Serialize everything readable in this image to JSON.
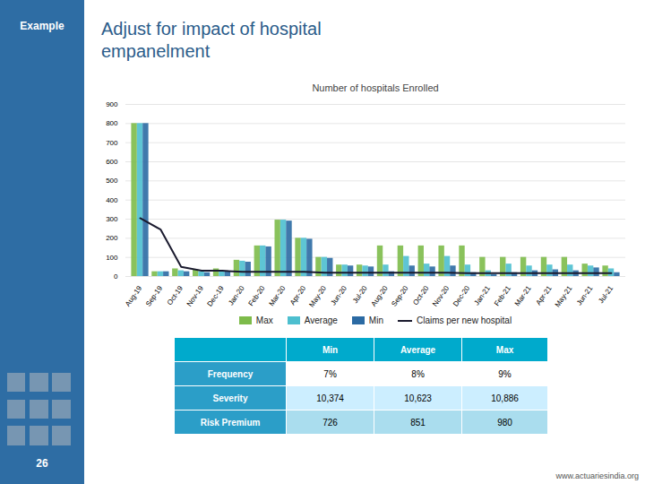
{
  "chart_data": {
    "type": "bar",
    "title": "Number of hospitals Enrolled",
    "categories": [
      "Aug-19",
      "Sep-19",
      "Oct-19",
      "Nov-19",
      "Dec-19",
      "Jan-20",
      "Feb-20",
      "Mar-20",
      "Apr-20",
      "May-20",
      "Jun-20",
      "Jul-20",
      "Aug-20",
      "Sep-20",
      "Oct-20",
      "Nov-20",
      "Dec-20",
      "Jan-21",
      "Feb-21",
      "Mar-21",
      "Apr-21",
      "May-21",
      "Jun-21",
      "Jul-21"
    ],
    "series": [
      {
        "name": "Max",
        "type": "bar",
        "color": "#7dbb4a",
        "values": [
          800,
          25,
          40,
          35,
          40,
          85,
          160,
          295,
          200,
          100,
          60,
          60,
          160,
          160,
          160,
          160,
          160,
          100,
          100,
          100,
          100,
          100,
          65,
          55
        ]
      },
      {
        "name": "Average",
        "type": "bar",
        "color": "#4dbfcf",
        "values": [
          800,
          25,
          30,
          25,
          30,
          80,
          160,
          295,
          200,
          100,
          60,
          55,
          60,
          105,
          65,
          105,
          60,
          30,
          65,
          55,
          60,
          60,
          55,
          40
        ]
      },
      {
        "name": "Min",
        "type": "bar",
        "color": "#2b6aa3",
        "values": [
          800,
          25,
          25,
          20,
          25,
          75,
          155,
          290,
          195,
          95,
          55,
          50,
          25,
          55,
          50,
          55,
          20,
          10,
          20,
          30,
          35,
          30,
          45,
          20
        ]
      },
      {
        "name": "Claims per new hospital",
        "type": "line",
        "color": "#1a1a2e",
        "values": [
          305,
          245,
          50,
          30,
          30,
          25,
          25,
          25,
          25,
          20,
          20,
          20,
          20,
          20,
          20,
          20,
          18,
          18,
          18,
          18,
          18,
          18,
          18,
          18
        ]
      }
    ],
    "ylim": [
      0,
      900
    ],
    "yticks": [
      0,
      100,
      200,
      300,
      400,
      500,
      600,
      700,
      800,
      900
    ],
    "grid": true,
    "legend": "bottom",
    "annotations": [
      "Adjust for impact of hospital\nempanelment",
      "Example",
      "26",
      "www.actuariesindia.org"
    ],
    "table": {
      "columns": [
        "Min",
        "Average",
        "Max"
      ],
      "rows": [
        {
          "name": "Frequency",
          "values": [
            "7%",
            "8%",
            "9%"
          ]
        },
        {
          "name": "Severity",
          "values": [
            "10,374",
            "10,623",
            "10,886"
          ]
        },
        {
          "name": "Risk Premium",
          "values": [
            "726",
            "851",
            "980"
          ]
        }
      ]
    }
  }
}
